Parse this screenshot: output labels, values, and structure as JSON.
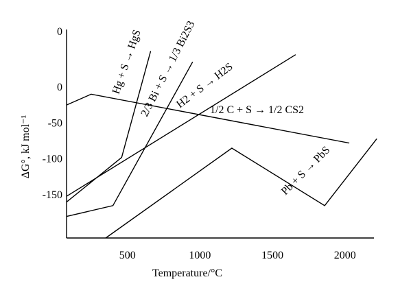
{
  "chart_data": {
    "type": "line",
    "xlabel": "Temperature/°C",
    "ylabel": "ΔG°, kJ mol⁻¹",
    "x_ticks": [
      500,
      1000,
      1500,
      2000
    ],
    "y_ticks": [
      0,
      -50,
      -100,
      -150
    ],
    "top_tick": "0",
    "xlim": [
      80,
      2200
    ],
    "ylim": [
      -210,
      80
    ],
    "series": [
      {
        "name": "Hg + S → HgS",
        "points": [
          [
            80,
            -160
          ],
          [
            460,
            -98
          ],
          [
            660,
            50
          ]
        ],
        "label": "Hg + S → HgS"
      },
      {
        "name": "2/3 Bi + S → 1/3 Bi2S3",
        "points": [
          [
            80,
            -180
          ],
          [
            400,
            -165
          ],
          [
            950,
            35
          ]
        ],
        "label": "2/3 Bi + S → 1/3 Bi2S3"
      },
      {
        "name": "H2 + S → H2S",
        "points": [
          [
            80,
            -152
          ],
          [
            1660,
            45
          ]
        ],
        "label": "H2 + S → H2S"
      },
      {
        "name": "1/2 C + S → 1/2 CS2",
        "points": [
          [
            80,
            -25
          ],
          [
            250,
            -10
          ],
          [
            2030,
            -78
          ]
        ],
        "label": "1/2 C + S → 1/2 CS2"
      },
      {
        "name": "Pb + S → PbS",
        "points": [
          [
            350,
            -210
          ],
          [
            1220,
            -85
          ],
          [
            1860,
            -165
          ],
          [
            2220,
            -72
          ]
        ],
        "label": "Pb + S → PbS"
      }
    ]
  }
}
